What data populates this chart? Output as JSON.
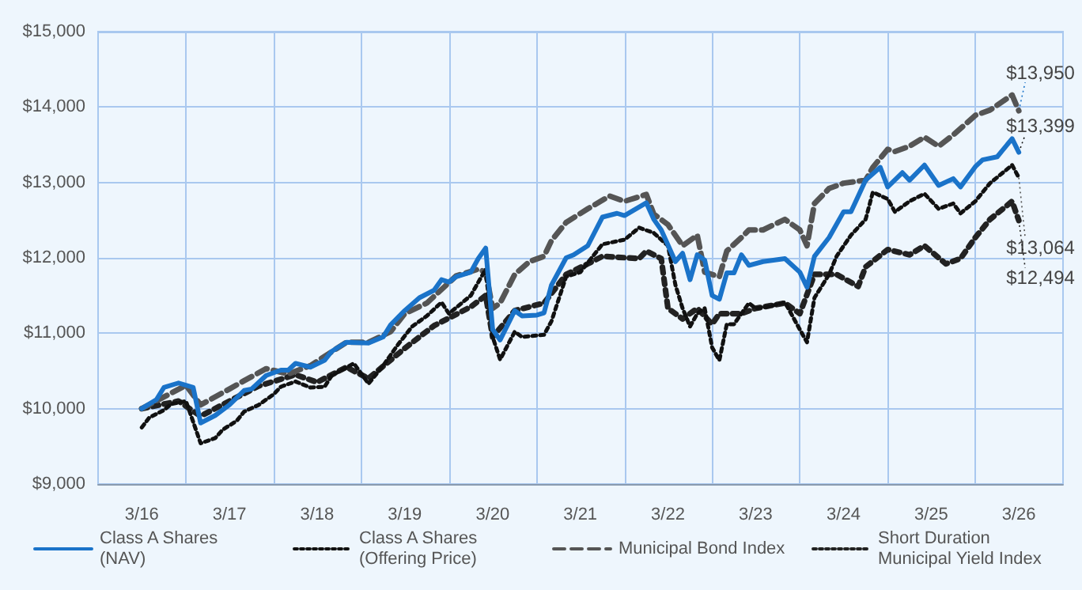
{
  "chart_data": {
    "type": "line",
    "xlim": [
      "2015-09",
      "2026-09"
    ],
    "xticks": [
      {
        "value": "2016-03",
        "label": "3/16"
      },
      {
        "value": "2016-09",
        "label": null
      },
      {
        "value": "2017-03",
        "label": "3/17"
      },
      {
        "value": "2017-09",
        "label": null
      },
      {
        "value": "2018-03",
        "label": "3/18"
      },
      {
        "value": "2018-09",
        "label": null
      },
      {
        "value": "2019-03",
        "label": "3/19"
      },
      {
        "value": "2019-09",
        "label": null
      },
      {
        "value": "2020-03",
        "label": "3/20"
      },
      {
        "value": "2020-09",
        "label": null
      },
      {
        "value": "2021-03",
        "label": "3/21"
      },
      {
        "value": "2021-09",
        "label": null
      },
      {
        "value": "2022-03",
        "label": "3/22"
      },
      {
        "value": "2022-09",
        "label": null
      },
      {
        "value": "2023-03",
        "label": "3/23"
      },
      {
        "value": "2023-09",
        "label": null
      },
      {
        "value": "2024-03",
        "label": "3/24"
      },
      {
        "value": "2024-09",
        "label": null
      },
      {
        "value": "2025-03",
        "label": "3/25"
      },
      {
        "value": "2025-09",
        "label": null
      },
      {
        "value": "2026-03",
        "label": "3/26"
      }
    ],
    "ylim": [
      9000,
      15000
    ],
    "yticks": [
      {
        "value": 9000,
        "label": "$9,000"
      },
      {
        "value": 10000,
        "label": "$10,000"
      },
      {
        "value": 11000,
        "label": "$11,000"
      },
      {
        "value": 12000,
        "label": "$12,000"
      },
      {
        "value": 13000,
        "label": "$13,000"
      },
      {
        "value": 14000,
        "label": "$14,000"
      },
      {
        "value": 15000,
        "label": "$15,000"
      }
    ],
    "grid": true,
    "legend": "bottom",
    "marker": "none",
    "series": [
      {
        "name": "Class A Shares (NAV)",
        "color": "#1a73c9",
        "line_style": "solid",
        "x": [
          "2016-03",
          "2016-05",
          "2016-06",
          "2016-08",
          "2016-10",
          "2016-11",
          "2017-01",
          "2017-03",
          "2017-05",
          "2017-06",
          "2017-08",
          "2017-10",
          "2017-11",
          "2017-12",
          "2018-02",
          "2018-04",
          "2018-05",
          "2018-07",
          "2018-10",
          "2018-12",
          "2019-01",
          "2019-03",
          "2019-05",
          "2019-07",
          "2019-08",
          "2019-09",
          "2019-10",
          "2019-12",
          "2020-01",
          "2020-02",
          "2020-03",
          "2020-04",
          "2020-06",
          "2020-07",
          "2020-09",
          "2020-10",
          "2020-11",
          "2021-01",
          "2021-02",
          "2021-04",
          "2021-06",
          "2021-08",
          "2021-09",
          "2021-12",
          "2022-01",
          "2022-02",
          "2022-04",
          "2022-05",
          "2022-06",
          "2022-07",
          "2022-08",
          "2022-09",
          "2022-10",
          "2022-11",
          "2022-12",
          "2023-01",
          "2023-02",
          "2023-04",
          "2023-07",
          "2023-09",
          "2023-10",
          "2023-11",
          "2024-01",
          "2024-03",
          "2024-04",
          "2024-06",
          "2024-08",
          "2024-09",
          "2024-11",
          "2024-12",
          "2025-02",
          "2025-04",
          "2025-06",
          "2025-07",
          "2025-09",
          "2025-10",
          "2025-12",
          "2026-02",
          "2026-03"
        ],
        "values": [
          10000,
          10120,
          10280,
          10340,
          10280,
          9810,
          9910,
          10050,
          10240,
          10260,
          10440,
          10510,
          10510,
          10600,
          10550,
          10640,
          10760,
          10880,
          10870,
          10950,
          11110,
          11300,
          11470,
          11570,
          11710,
          11680,
          11750,
          11810,
          11990,
          12130,
          11050,
          10910,
          11300,
          11230,
          11240,
          11270,
          11640,
          12000,
          12040,
          12160,
          12540,
          12590,
          12560,
          12730,
          12510,
          12370,
          11950,
          12060,
          11710,
          12040,
          11970,
          11500,
          11450,
          11800,
          11800,
          12040,
          11900,
          11950,
          11990,
          11810,
          11610,
          12020,
          12270,
          12610,
          12610,
          13030,
          13200,
          12940,
          13130,
          13030,
          13230,
          12960,
          13050,
          12940,
          13210,
          13300,
          13340,
          13580,
          13399
        ]
      },
      {
        "name": "Class A Shares (Offering Price)",
        "color": "#111111",
        "line_style": "dotted",
        "x": [
          "2016-03",
          "2016-04",
          "2016-06",
          "2016-07",
          "2016-09",
          "2016-11",
          "2017-01",
          "2017-02",
          "2017-04",
          "2017-05",
          "2017-07",
          "2017-09",
          "2017-10",
          "2017-12",
          "2018-02",
          "2018-04",
          "2018-05",
          "2018-08",
          "2018-10",
          "2018-12",
          "2019-02",
          "2019-04",
          "2019-06",
          "2019-08",
          "2019-09",
          "2019-12",
          "2020-02",
          "2020-03",
          "2020-04",
          "2020-06",
          "2020-07",
          "2020-10",
          "2020-11",
          "2021-01",
          "2021-03",
          "2021-06",
          "2021-09",
          "2021-11",
          "2022-01",
          "2022-03",
          "2022-04",
          "2022-05",
          "2022-06",
          "2022-07",
          "2022-08",
          "2022-09",
          "2022-10",
          "2022-11",
          "2022-12",
          "2023-02",
          "2023-03",
          "2023-05",
          "2023-07",
          "2023-09",
          "2023-10",
          "2023-11",
          "2024-01",
          "2024-02",
          "2024-04",
          "2024-06",
          "2024-07",
          "2024-09",
          "2024-10",
          "2024-12",
          "2025-02",
          "2025-04",
          "2025-06",
          "2025-07",
          "2025-09",
          "2025-11",
          "2026-02",
          "2026-03"
        ],
        "values": [
          9750,
          9880,
          9980,
          10060,
          10100,
          9540,
          9610,
          9720,
          9840,
          9960,
          10050,
          10190,
          10290,
          10360,
          10280,
          10290,
          10440,
          10600,
          10330,
          10570,
          10850,
          11090,
          11230,
          11410,
          11260,
          11500,
          11850,
          10950,
          10650,
          11020,
          10950,
          10980,
          11160,
          11750,
          11810,
          12180,
          12240,
          12400,
          12330,
          12160,
          11640,
          11330,
          11090,
          11260,
          11330,
          10810,
          10640,
          11120,
          11120,
          11400,
          11330,
          11360,
          11410,
          11050,
          10880,
          11470,
          11780,
          12020,
          12300,
          12510,
          12870,
          12780,
          12610,
          12750,
          12850,
          12650,
          12720,
          12590,
          12750,
          12990,
          13230,
          13064
        ]
      },
      {
        "name": "Municipal Bond Index",
        "color": "#555555",
        "line_style": "dashed",
        "x": [
          "2016-03",
          "2016-09",
          "2016-11",
          "2017-03",
          "2017-05",
          "2017-08",
          "2017-11",
          "2018-02",
          "2018-07",
          "2018-10",
          "2019-01",
          "2019-03",
          "2019-06",
          "2019-10",
          "2020-01",
          "2020-02",
          "2020-03",
          "2020-04",
          "2020-06",
          "2020-08",
          "2020-10",
          "2020-11",
          "2021-01",
          "2021-04",
          "2021-07",
          "2021-09",
          "2021-12",
          "2022-01",
          "2022-03",
          "2022-05",
          "2022-07",
          "2022-08",
          "2022-10",
          "2022-11",
          "2023-01",
          "2023-02",
          "2023-04",
          "2023-07",
          "2023-09",
          "2023-10",
          "2023-11",
          "2024-01",
          "2024-03",
          "2024-06",
          "2024-07",
          "2024-09",
          "2024-10",
          "2024-12",
          "2025-02",
          "2025-04",
          "2025-06",
          "2025-09",
          "2025-11",
          "2026-02",
          "2026-03"
        ],
        "values": [
          10000,
          10310,
          10050,
          10260,
          10370,
          10530,
          10460,
          10570,
          10880,
          10880,
          11020,
          11260,
          11400,
          11760,
          11850,
          11810,
          11330,
          11400,
          11780,
          11950,
          12020,
          12230,
          12470,
          12650,
          12820,
          12750,
          12840,
          12580,
          12440,
          12160,
          12300,
          11810,
          11750,
          12090,
          12270,
          12370,
          12370,
          12510,
          12370,
          12160,
          12720,
          12920,
          12990,
          13030,
          13200,
          13440,
          13410,
          13480,
          13600,
          13480,
          13630,
          13890,
          13960,
          14160,
          13950
        ]
      },
      {
        "name": "Short Duration Municipal Yield Index",
        "color": "#222222",
        "line_style": "dotted",
        "x": [
          "2016-03",
          "2016-08",
          "2016-11",
          "2017-03",
          "2017-07",
          "2017-12",
          "2018-03",
          "2018-07",
          "2018-10",
          "2019-03",
          "2019-07",
          "2019-12",
          "2020-02",
          "2020-03",
          "2020-06",
          "2020-10",
          "2021-01",
          "2021-04",
          "2021-06",
          "2021-11",
          "2021-12",
          "2022-02",
          "2022-03",
          "2022-05",
          "2022-07",
          "2022-09",
          "2022-10",
          "2023-01",
          "2023-03",
          "2023-07",
          "2023-09",
          "2023-11",
          "2024-02",
          "2024-05",
          "2024-06",
          "2024-09",
          "2024-12",
          "2025-02",
          "2025-05",
          "2025-07",
          "2025-09",
          "2025-11",
          "2026-02",
          "2026-03"
        ],
        "values": [
          10000,
          10100,
          9900,
          10100,
          10300,
          10450,
          10350,
          10550,
          10400,
          10800,
          11100,
          11350,
          11500,
          10950,
          11300,
          11400,
          11780,
          11920,
          12020,
          11990,
          12090,
          11990,
          11330,
          11190,
          11330,
          11120,
          11260,
          11260,
          11330,
          11400,
          11260,
          11780,
          11780,
          11620,
          11880,
          12110,
          12040,
          12160,
          11920,
          11990,
          12270,
          12510,
          12750,
          12494
        ]
      }
    ],
    "annotations": [
      {
        "text": "$13,950",
        "x": "2026-03",
        "y": 13950
      },
      {
        "text": "$13,399",
        "x": "2026-03",
        "y": 13399
      },
      {
        "text": "$13,064",
        "x": "2026-03",
        "y": 13064
      },
      {
        "text": "$12,494",
        "x": "2026-03",
        "y": 12494
      }
    ]
  }
}
